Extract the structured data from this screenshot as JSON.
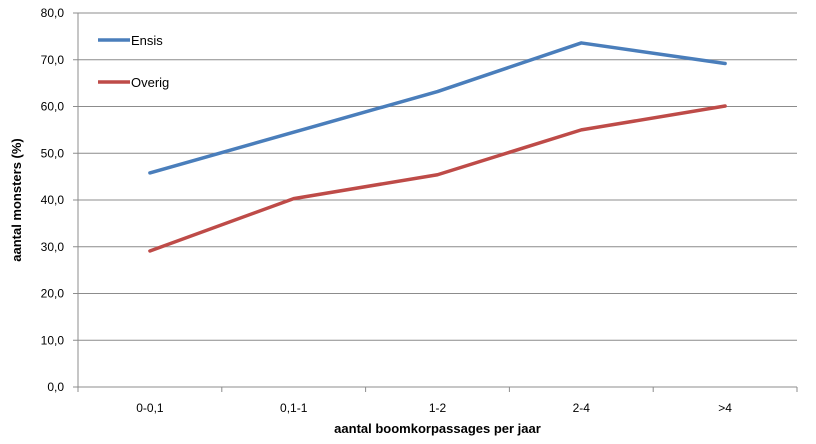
{
  "chart_data": {
    "type": "line",
    "title": "",
    "xlabel": "aantal boomkorpassages per jaar",
    "ylabel": "aantal monsters (%)",
    "categories": [
      "0-0,1",
      "0,1-1",
      "1-2",
      "2-4",
      ">4"
    ],
    "ylim": [
      0,
      80
    ],
    "yticks": [
      "0,0",
      "10,0",
      "20,0",
      "30,0",
      "40,0",
      "50,0",
      "60,0",
      "70,0",
      "80,0"
    ],
    "grid": "horizontal",
    "legend_position": "top-left",
    "series": [
      {
        "name": "Ensis",
        "color": "#4a7ebb",
        "values": [
          45.8,
          54.5,
          63.2,
          73.6,
          69.2
        ]
      },
      {
        "name": "Overig",
        "color": "#be4b48",
        "values": [
          29.1,
          40.3,
          45.4,
          55.0,
          60.1
        ]
      }
    ]
  }
}
